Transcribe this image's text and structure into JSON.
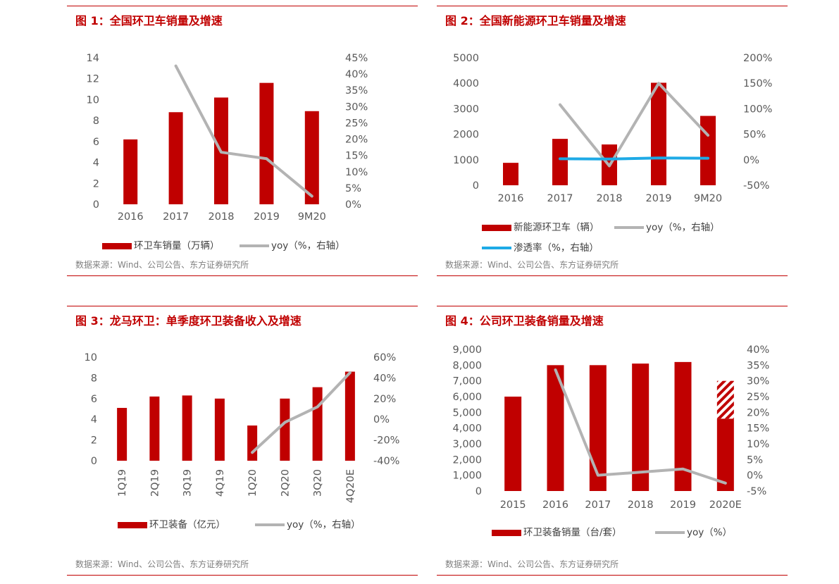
{
  "colors": {
    "bar": "#C00000",
    "line": "#B3B3B3",
    "penetration": "#1EAAE6",
    "text": "#595959",
    "source": "#808080"
  },
  "chart_data": [
    {
      "id": "fig1",
      "type": "bar",
      "title": "图 1：全国环卫车销量及增速",
      "source": "数据来源：Wind、公司公告、东方证券研究所",
      "categories": [
        "2016",
        "2017",
        "2018",
        "2019",
        "9M20"
      ],
      "left_axis": {
        "min": 0,
        "max": 14,
        "ticks": [
          0,
          2,
          4,
          6,
          8,
          10,
          12,
          14
        ]
      },
      "right_axis": {
        "min": 0,
        "max": 45,
        "ticks": [
          0,
          5,
          10,
          15,
          20,
          25,
          30,
          35,
          40,
          45
        ],
        "suffix": "%"
      },
      "series": [
        {
          "name": "环卫车销量（万辆）",
          "kind": "bar",
          "axis": "left",
          "values": [
            6.2,
            8.8,
            10.2,
            11.6,
            8.9
          ]
        },
        {
          "name": "yoy（%，右轴）",
          "kind": "line",
          "axis": "right",
          "values": [
            null,
            42.5,
            16,
            14,
            2.5
          ]
        }
      ]
    },
    {
      "id": "fig2",
      "type": "bar",
      "title": "图 2：全国新能源环卫车销量及增速",
      "source": "数据来源：Wind、公司公告、东方证券研究所",
      "categories": [
        "2016",
        "2017",
        "2018",
        "2019",
        "9M20"
      ],
      "left_axis": {
        "min": 0,
        "max": 5000,
        "ticks": [
          0,
          1000,
          2000,
          3000,
          4000,
          5000
        ]
      },
      "right_axis": {
        "min": -50,
        "max": 200,
        "ticks": [
          -50,
          0,
          50,
          100,
          150,
          200
        ],
        "suffix": "%"
      },
      "series": [
        {
          "name": "新能源环卫车（辆）",
          "kind": "bar",
          "axis": "left",
          "values": [
            880,
            1820,
            1600,
            4020,
            2720
          ]
        },
        {
          "name": "yoy（%，右轴）",
          "kind": "line",
          "axis": "right",
          "values": [
            null,
            108,
            -12,
            150,
            48
          ]
        },
        {
          "name": "渗透率（%，右轴）",
          "kind": "line",
          "axis": "right",
          "values": [
            null,
            2,
            1.5,
            3.5,
            3
          ]
        }
      ]
    },
    {
      "id": "fig3",
      "type": "bar",
      "title": "图 3：龙马环卫：单季度环卫装备收入及增速",
      "source": "数据来源：Wind、公司公告、东方证券研究所",
      "categories": [
        "1Q19",
        "2Q19",
        "3Q19",
        "4Q19",
        "1Q20",
        "2Q20",
        "3Q20",
        "4Q20E"
      ],
      "left_axis": {
        "min": 0,
        "max": 10,
        "ticks": [
          0,
          2,
          4,
          6,
          8,
          10
        ]
      },
      "right_axis": {
        "min": -40,
        "max": 60,
        "ticks": [
          -40,
          -20,
          0,
          20,
          40,
          60
        ],
        "suffix": "%"
      },
      "series": [
        {
          "name": "环卫装备（亿元）",
          "kind": "bar",
          "axis": "left",
          "values": [
            5.1,
            6.2,
            6.3,
            6.0,
            3.4,
            6.0,
            7.1,
            8.6
          ]
        },
        {
          "name": "yoy（%，右轴）",
          "kind": "line",
          "axis": "right",
          "values": [
            null,
            null,
            null,
            null,
            -32,
            -3,
            12,
            45
          ]
        }
      ]
    },
    {
      "id": "fig4",
      "type": "bar",
      "title": "图 4：公司环卫装备销量及增速",
      "source": "数据来源：Wind、公司公告、东方证券研究所",
      "categories": [
        "2015",
        "2016",
        "2017",
        "2018",
        "2019",
        "2020E"
      ],
      "left_axis": {
        "min": 0,
        "max": 9000,
        "ticks": [
          0,
          1000,
          2000,
          3000,
          4000,
          5000,
          6000,
          7000,
          8000,
          9000
        ],
        "thousands": true
      },
      "right_axis": {
        "min": -5,
        "max": 40,
        "ticks": [
          -5,
          0,
          5,
          10,
          15,
          20,
          25,
          30,
          35,
          40
        ],
        "suffix": "%"
      },
      "series": [
        {
          "name": "环卫装备销量（台/套）",
          "kind": "bar",
          "axis": "left",
          "values": [
            6000,
            8000,
            8000,
            8100,
            8200,
            4600
          ],
          "hatched_extension": [
            null,
            null,
            null,
            null,
            null,
            2400
          ]
        },
        {
          "name": "yoy（%）",
          "kind": "line",
          "axis": "right",
          "values": [
            null,
            33.5,
            0,
            1,
            2,
            -2.5
          ]
        }
      ]
    }
  ]
}
